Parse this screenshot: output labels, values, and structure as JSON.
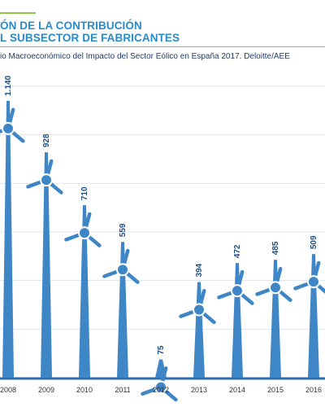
{
  "header": {
    "title_line1": "ÓN DE LA CONTRIBUCIÓN",
    "title_line2": "L SUBSECTOR DE FABRICANTES",
    "source": "io Macroeconómico del Impacto del Sector Eólico en España 2017. Deloitte/AEE"
  },
  "colors": {
    "accent": "#8dc63f",
    "title": "#2a8bc9",
    "turbine": "#3f86c7",
    "label": "#1f4f82"
  },
  "chart_data": {
    "type": "bar",
    "mark_style": "wind-turbine",
    "categories": [
      "2008",
      "2009",
      "2010",
      "2011",
      "2012",
      "2013",
      "2014",
      "2015",
      "2016"
    ],
    "values": [
      1140,
      928,
      710,
      559,
      75,
      394,
      472,
      485,
      509
    ],
    "value_labels": [
      "1.140",
      "928",
      "710",
      "559",
      "75",
      "394",
      "472",
      "485",
      "509"
    ],
    "ylim": [
      0,
      1200
    ],
    "grid": true,
    "title": "",
    "xlabel": "",
    "ylabel": ""
  }
}
